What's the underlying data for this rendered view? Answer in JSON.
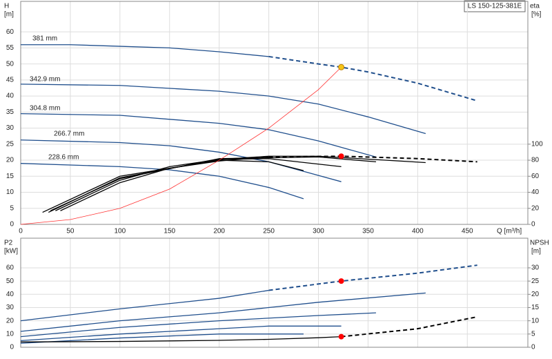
{
  "title": "LS 150-125-381E",
  "chart_data": [
    {
      "type": "line",
      "ylabel": "H",
      "yunit": "[m]",
      "y2label": "eta",
      "y2unit": "[%]",
      "xlabel": "Q [m³/h]",
      "xlim": [
        0,
        511
      ],
      "xticks": [
        0,
        50,
        100,
        150,
        200,
        250,
        300,
        350,
        400,
        450
      ],
      "ylim": [
        0,
        69.5
      ],
      "yticks": [
        0,
        5,
        10,
        15,
        20,
        25,
        30,
        35,
        40,
        45,
        50,
        55,
        60
      ],
      "y2lim": [
        0,
        278
      ],
      "y2ticks": [
        0,
        20,
        40,
        60,
        80,
        100
      ],
      "grid": true,
      "series": [
        {
          "name": "381 mm",
          "color": "#1f4e8c",
          "x": [
            0,
            50,
            100,
            150,
            200,
            250
          ],
          "values": [
            56,
            56,
            55.5,
            55,
            53.8,
            52.3
          ]
        },
        {
          "color": "#1f4e8c",
          "dash": true,
          "x": [
            250,
            300,
            323,
            350,
            400,
            460
          ],
          "values": [
            52.3,
            50,
            49,
            47.5,
            44,
            38.5
          ]
        },
        {
          "name": "342.9 mm",
          "color": "#1f4e8c",
          "x": [
            0,
            100,
            200,
            250,
            300,
            350,
            408
          ],
          "values": [
            43.7,
            43.3,
            41.5,
            40,
            37.5,
            33.5,
            28.3
          ]
        },
        {
          "name": "304.8 mm",
          "color": "#1f4e8c",
          "x": [
            0,
            100,
            200,
            250,
            300,
            358
          ],
          "values": [
            34.5,
            34,
            31.5,
            29.5,
            26,
            21
          ]
        },
        {
          "name": "266.7 mm",
          "color": "#1f4e8c",
          "x": [
            0,
            100,
            150,
            200,
            250,
            323
          ],
          "values": [
            26.3,
            25.5,
            24.5,
            22.5,
            19.5,
            13.3
          ]
        },
        {
          "name": "228.6 mm",
          "color": "#1f4e8c",
          "x": [
            0,
            100,
            150,
            200,
            250,
            285
          ],
          "values": [
            19,
            18,
            17,
            15,
            11.5,
            8
          ]
        },
        {
          "color": "#000000",
          "axis": "y2",
          "x": [
            40,
            100,
            150,
            200,
            250
          ],
          "values": [
            17,
            52,
            70,
            79,
            84
          ]
        },
        {
          "color": "#000000",
          "axis": "y2",
          "dash": true,
          "x": [
            250,
            323,
            400,
            460
          ],
          "values": [
            84,
            85,
            82,
            78
          ]
        },
        {
          "color": "#000000",
          "axis": "y2",
          "x": [
            35,
            100,
            150,
            200,
            250,
            300,
            408
          ],
          "values": [
            17,
            55,
            72,
            81,
            85,
            85,
            77
          ]
        },
        {
          "color": "#000000",
          "axis": "y2",
          "x": [
            30,
            100,
            200,
            300,
            358
          ],
          "values": [
            17,
            57,
            82,
            84,
            78
          ]
        },
        {
          "color": "#000000",
          "axis": "y2",
          "x": [
            28,
            100,
            200,
            250,
            323
          ],
          "values": [
            15,
            58,
            81,
            82,
            72
          ]
        },
        {
          "color": "#000000",
          "axis": "y2",
          "x": [
            22,
            100,
            200,
            250,
            285
          ],
          "values": [
            15,
            60,
            80,
            78,
            67
          ]
        },
        {
          "color": "#ff3030",
          "x": [
            0,
            50,
            100,
            150,
            200,
            250,
            300,
            323
          ],
          "values": [
            0,
            1.5,
            5,
            11,
            20,
            30,
            42,
            49
          ]
        },
        {
          "color": "#f5c518",
          "marker": true,
          "x": [
            323
          ],
          "values": [
            49
          ]
        },
        {
          "color": "#ff0000",
          "marker": true,
          "axis": "y2",
          "x": [
            323
          ],
          "values": [
            85
          ]
        }
      ]
    },
    {
      "type": "line",
      "ylabel": "P2",
      "yunit": "[kW]",
      "y2label": "NPSH",
      "y2unit": "[m]",
      "xlim": [
        0,
        511
      ],
      "xticks": [
        0,
        50,
        100,
        150,
        200,
        250,
        300,
        350,
        400,
        450
      ],
      "ylim": [
        0,
        82.4
      ],
      "yticks": [
        0,
        10,
        20,
        30,
        40,
        50,
        60
      ],
      "y2lim": [
        0,
        41.2
      ],
      "y2ticks": [
        0,
        5,
        10,
        15,
        20,
        25,
        30
      ],
      "grid": true,
      "series": [
        {
          "color": "#1f4e8c",
          "x": [
            0,
            100,
            200,
            250
          ],
          "values": [
            20,
            29,
            37,
            43
          ]
        },
        {
          "color": "#1f4e8c",
          "dash": true,
          "x": [
            250,
            323,
            400,
            460
          ],
          "values": [
            43,
            50,
            56,
            62
          ]
        },
        {
          "color": "#1f4e8c",
          "x": [
            0,
            100,
            200,
            300,
            408
          ],
          "values": [
            12,
            20,
            26,
            34,
            41
          ]
        },
        {
          "color": "#1f4e8c",
          "x": [
            0,
            100,
            200,
            300,
            358
          ],
          "values": [
            8,
            15,
            20,
            24,
            26
          ]
        },
        {
          "color": "#1f4e8c",
          "x": [
            0,
            100,
            200,
            250,
            323
          ],
          "values": [
            5,
            10,
            14,
            16,
            16
          ]
        },
        {
          "color": "#1f4e8c",
          "x": [
            0,
            100,
            200,
            285
          ],
          "values": [
            3,
            7,
            10,
            10
          ]
        },
        {
          "color": "#000000",
          "axis": "y2",
          "x": [
            0,
            100,
            200,
            250,
            300,
            323
          ],
          "values": [
            2,
            2.2,
            2.6,
            3,
            3.6,
            4
          ]
        },
        {
          "color": "#000000",
          "axis": "y2",
          "dash": true,
          "x": [
            323,
            400,
            460
          ],
          "values": [
            4,
            7,
            11.5
          ]
        },
        {
          "color": "#ff0000",
          "marker": true,
          "x": [
            323
          ],
          "values": [
            50
          ]
        },
        {
          "color": "#ff0000",
          "marker": true,
          "axis": "y2",
          "x": [
            323
          ],
          "values": [
            4
          ]
        }
      ]
    }
  ]
}
